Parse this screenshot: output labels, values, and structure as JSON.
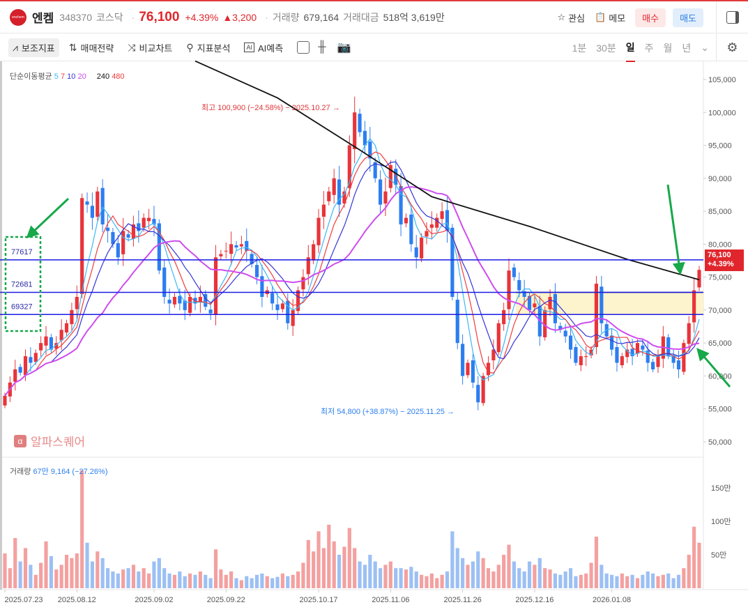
{
  "header": {
    "logo_text": "enchem",
    "name": "엔켐",
    "code": "348370",
    "market": "코스닥",
    "price": "76,100",
    "change_pct": "+4.39%",
    "change_abs": "▲3,200",
    "volume_label": "거래량",
    "volume": "679,164",
    "value_label": "거래대금",
    "value": "518억 3,619만",
    "watch": "관심",
    "memo": "메모",
    "buy": "매수",
    "sell": "매도"
  },
  "toolbar": {
    "items": [
      "보조지표",
      "매매전략",
      "비교차트",
      "지표분석",
      "AI예측"
    ],
    "periods": [
      "1분",
      "30분",
      "일",
      "주",
      "월",
      "년"
    ],
    "selected_period": "일"
  },
  "legend": {
    "title": "단순이동평균",
    "ma": [
      {
        "label": "5",
        "color": "#3bb8f5"
      },
      {
        "label": "7",
        "color": "#f03c3c"
      },
      {
        "label": "10",
        "color": "#3434d8"
      },
      {
        "label": "20",
        "color": "#cf4cf0"
      },
      {
        "label": "240",
        "color": "#111111"
      },
      {
        "label": "480",
        "color": "#f03c3c"
      }
    ]
  },
  "volume_legend": {
    "label": "거래량",
    "value": "67만 9,164 (−27.26%)"
  },
  "watermark": "알파스퀘어",
  "annotations": {
    "high": "최고 100,900 (−24.58%) − 2025.10.27 →",
    "low": "최저 54,800 (+38.87%) − 2025.11.25 →"
  },
  "price_tag": {
    "price": "76,100",
    "pct": "+4.39%"
  },
  "level_labels": [
    "77617",
    "72681",
    "69327"
  ],
  "chart_data": {
    "type": "candlestick",
    "levels": [
      77617,
      72681,
      69327
    ],
    "zone": [
      69327,
      72681
    ],
    "price_axis": [
      "105,000",
      "100,000",
      "95,000",
      "90,000",
      "85,000",
      "80,000",
      "75,000",
      "70,000",
      "65,000",
      "60,000",
      "55,000",
      "50,000"
    ],
    "price_range": [
      50000,
      105000
    ],
    "volume_axis": [
      "150만",
      "100만",
      "50만"
    ],
    "dates": [
      "2025.07.23",
      "2025.08.12",
      "2025.09.02",
      "2025.09.22",
      "2025.10.17",
      "2025.11.06",
      "2025.11.26",
      "2025.12.16",
      "2026.01.08"
    ],
    "date_index": [
      0,
      14,
      29,
      43,
      61,
      75,
      89,
      103,
      118
    ],
    "closes": [
      57000,
      59000,
      61000,
      60500,
      63000,
      62000,
      63500,
      65000,
      66000,
      64000,
      65000,
      67000,
      68000,
      70000,
      72000,
      87000,
      86000,
      84000,
      88000,
      83000,
      82000,
      80000,
      78000,
      82000,
      81000,
      83000,
      82000,
      84000,
      84000,
      83000,
      76000,
      72000,
      71000,
      72000,
      71000,
      70000,
      72000,
      71000,
      72000,
      70500,
      69500,
      78000,
      78500,
      79000,
      80000,
      79500,
      80000,
      79000,
      77000,
      75000,
      72000,
      73000,
      71000,
      70000,
      71000,
      68000,
      70000,
      73000,
      75000,
      78000,
      80000,
      84000,
      86000,
      88000,
      90000,
      86000,
      88000,
      95000,
      100000,
      97000,
      95000,
      93000,
      90000,
      86000,
      88000,
      92000,
      89000,
      83000,
      84000,
      80000,
      78000,
      81000,
      82000,
      83000,
      84000,
      85000,
      82000,
      72000,
      65000,
      60000,
      62000,
      59000,
      56000,
      60000,
      62000,
      64000,
      68000,
      70000,
      76000,
      75000,
      73000,
      72000,
      70000,
      71000,
      66000,
      70000,
      72000,
      68000,
      67000,
      66000,
      64000,
      62000,
      63000,
      63000,
      64000,
      74000,
      68000,
      66000,
      64000,
      62000,
      63000,
      64000,
      63000,
      65000,
      64000,
      62000,
      61000,
      63000,
      66000,
      63000,
      62000,
      61000,
      65000,
      68000,
      73000,
      76100
    ],
    "volumes_man": [
      52,
      30,
      75,
      40,
      60,
      35,
      20,
      38,
      70,
      48,
      28,
      35,
      50,
      45,
      52,
      176,
      68,
      40,
      55,
      45,
      30,
      25,
      22,
      28,
      30,
      35,
      25,
      30,
      22,
      40,
      45,
      30,
      22,
      20,
      25,
      18,
      22,
      20,
      25,
      20,
      15,
      58,
      28,
      20,
      25,
      15,
      12,
      18,
      15,
      20,
      22,
      18,
      15,
      17,
      22,
      18,
      20,
      25,
      38,
      72,
      55,
      85,
      60,
      95,
      70,
      50,
      62,
      90,
      60,
      40,
      35,
      50,
      40,
      30,
      35,
      40,
      30,
      30,
      28,
      32,
      25,
      20,
      18,
      22,
      15,
      20,
      25,
      85,
      60,
      45,
      35,
      40,
      55,
      45,
      30,
      25,
      35,
      50,
      65,
      40,
      30,
      25,
      40,
      35,
      45,
      30,
      28,
      22,
      20,
      25,
      30,
      18,
      20,
      22,
      38,
      77,
      35,
      22,
      20,
      18,
      22,
      18,
      20,
      15,
      20,
      25,
      22,
      18,
      20,
      22,
      15,
      20,
      30,
      50,
      92,
      68
    ],
    "ma240_points": [
      [
        37,
        107800
      ],
      [
        53,
        102200
      ],
      [
        69,
        94300
      ],
      [
        83,
        87200
      ],
      [
        102,
        82700
      ],
      [
        121,
        77700
      ],
      [
        135,
        74600
      ]
    ],
    "colors": {
      "up": "#e8343a",
      "down": "#2c7ef0",
      "up_vol": "#f4a0a0",
      "down_vol": "#9cc0f4",
      "level": "#1a1ae6",
      "zone": "#fdf3cc",
      "arrow": "#17a84a"
    }
  }
}
